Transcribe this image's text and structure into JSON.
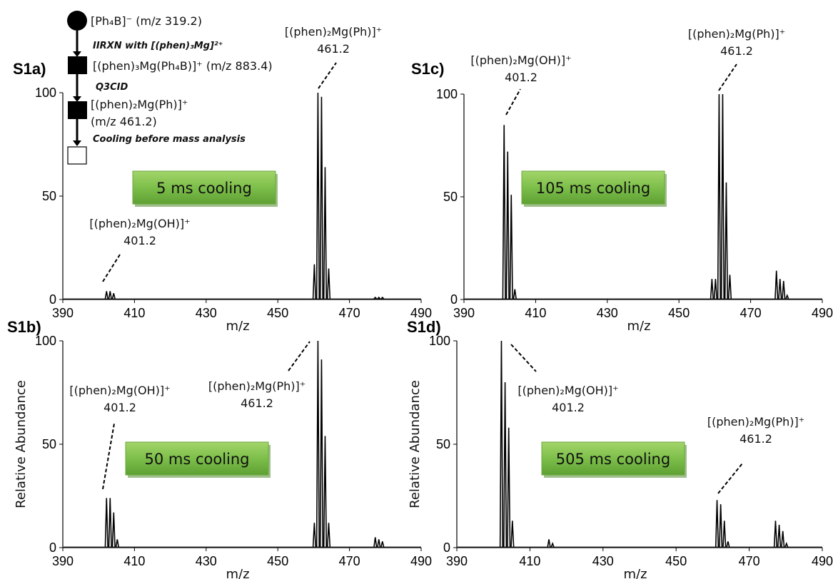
{
  "scheme": {
    "start_label": "[Ph₄B]⁻ (m/z 319.2)",
    "step1": "IIRXN with [(phen)₃Mg]²⁺",
    "intermediate_label": "[(phen)₃Mg(Ph₄B)]⁺ (m/z 883.4)",
    "step2": "Q3CID",
    "product_label_line1": "[(phen)₂Mg(Ph)]⁺",
    "product_label_line2": "(m/z 461.2)",
    "step3": "Cooling before mass analysis"
  },
  "colors": {
    "badge_fill": "#7dbf4a",
    "badge_shadow": "#4e8a2a",
    "trace": "#000000"
  },
  "chart_data": [
    {
      "id": "S1a",
      "panel_label": "S1a)",
      "type": "line",
      "xlabel": "m/z",
      "ylabel": "",
      "xlim": [
        390,
        490
      ],
      "ylim": [
        0,
        100
      ],
      "xticks": [
        390,
        410,
        430,
        450,
        470,
        490
      ],
      "yticks": [
        0,
        50,
        100
      ],
      "cooling_label": "5 ms cooling",
      "peaks": [
        {
          "x": 402.2,
          "y": 4
        },
        {
          "x": 403.2,
          "y": 4
        },
        {
          "x": 404.2,
          "y": 3
        },
        {
          "x": 460.2,
          "y": 17
        },
        {
          "x": 461.2,
          "y": 100
        },
        {
          "x": 462.2,
          "y": 98
        },
        {
          "x": 463.2,
          "y": 64
        },
        {
          "x": 464.2,
          "y": 15
        },
        {
          "x": 477.2,
          "y": 1
        },
        {
          "x": 478.2,
          "y": 1
        },
        {
          "x": 479.2,
          "y": 1
        }
      ],
      "annotations": [
        {
          "line1": "[(phen)₂Mg(OH)]⁺",
          "line2": "401.2"
        },
        {
          "line1": "[(phen)₂Mg(Ph)]⁺",
          "line2": "461.2"
        }
      ]
    },
    {
      "id": "S1b",
      "panel_label": "S1b)",
      "type": "line",
      "xlabel": "m/z",
      "ylabel": "Relative Abundance",
      "xlim": [
        390,
        490
      ],
      "ylim": [
        0,
        100
      ],
      "xticks": [
        390,
        410,
        430,
        450,
        470,
        490
      ],
      "yticks": [
        0,
        50,
        100
      ],
      "cooling_label": "50 ms cooling",
      "peaks": [
        {
          "x": 402.2,
          "y": 24
        },
        {
          "x": 403.2,
          "y": 24
        },
        {
          "x": 404.2,
          "y": 17
        },
        {
          "x": 405.2,
          "y": 4
        },
        {
          "x": 460.2,
          "y": 12
        },
        {
          "x": 461.2,
          "y": 100
        },
        {
          "x": 462.2,
          "y": 91
        },
        {
          "x": 463.2,
          "y": 54
        },
        {
          "x": 464.2,
          "y": 12
        },
        {
          "x": 477.2,
          "y": 5
        },
        {
          "x": 478.2,
          "y": 4
        },
        {
          "x": 479.2,
          "y": 3
        }
      ],
      "annotations": [
        {
          "line1": "[(phen)₂Mg(OH)]⁺",
          "line2": "401.2"
        },
        {
          "line1": "[(phen)₂Mg(Ph)]⁺",
          "line2": "461.2"
        }
      ]
    },
    {
      "id": "S1c",
      "panel_label": "S1c)",
      "type": "line",
      "xlabel": "m/z",
      "ylabel": "",
      "xlim": [
        390,
        490
      ],
      "ylim": [
        0,
        100
      ],
      "xticks": [
        390,
        410,
        430,
        450,
        470,
        490
      ],
      "yticks": [
        0,
        50,
        100
      ],
      "cooling_label": "105 ms cooling",
      "peaks": [
        {
          "x": 401.2,
          "y": 85
        },
        {
          "x": 402.2,
          "y": 72
        },
        {
          "x": 403.2,
          "y": 51
        },
        {
          "x": 404.2,
          "y": 5
        },
        {
          "x": 459.2,
          "y": 10
        },
        {
          "x": 460.2,
          "y": 10
        },
        {
          "x": 461.2,
          "y": 100
        },
        {
          "x": 462.2,
          "y": 100
        },
        {
          "x": 463.2,
          "y": 57
        },
        {
          "x": 464.2,
          "y": 12
        },
        {
          "x": 477.2,
          "y": 14
        },
        {
          "x": 478.2,
          "y": 10
        },
        {
          "x": 479.2,
          "y": 9
        },
        {
          "x": 480.2,
          "y": 2
        }
      ],
      "annotations": [
        {
          "line1": "[(phen)₂Mg(OH)]⁺",
          "line2": "401.2"
        },
        {
          "line1": "[(phen)₂Mg(Ph)]⁺",
          "line2": "461.2"
        }
      ]
    },
    {
      "id": "S1d",
      "panel_label": "S1d)",
      "type": "line",
      "xlabel": "m/z",
      "ylabel": "Relative Abundance",
      "xlim": [
        390,
        490
      ],
      "ylim": [
        0,
        100
      ],
      "xticks": [
        390,
        410,
        430,
        450,
        470,
        490
      ],
      "yticks": [
        0,
        50,
        100
      ],
      "cooling_label": "505 ms cooling",
      "peaks": [
        {
          "x": 402.2,
          "y": 100
        },
        {
          "x": 403.2,
          "y": 80
        },
        {
          "x": 404.2,
          "y": 58
        },
        {
          "x": 405.2,
          "y": 13
        },
        {
          "x": 415.2,
          "y": 4
        },
        {
          "x": 416.2,
          "y": 2
        },
        {
          "x": 461.2,
          "y": 23
        },
        {
          "x": 462.2,
          "y": 21
        },
        {
          "x": 463.2,
          "y": 13
        },
        {
          "x": 464.2,
          "y": 3
        },
        {
          "x": 477.2,
          "y": 13
        },
        {
          "x": 478.2,
          "y": 11
        },
        {
          "x": 479.2,
          "y": 8
        },
        {
          "x": 480.2,
          "y": 2
        }
      ],
      "annotations": [
        {
          "line1": "[(phen)₂Mg(OH)]⁺",
          "line2": "401.2"
        },
        {
          "line1": "[(phen)₂Mg(Ph)]⁺",
          "line2": "461.2"
        }
      ]
    }
  ]
}
